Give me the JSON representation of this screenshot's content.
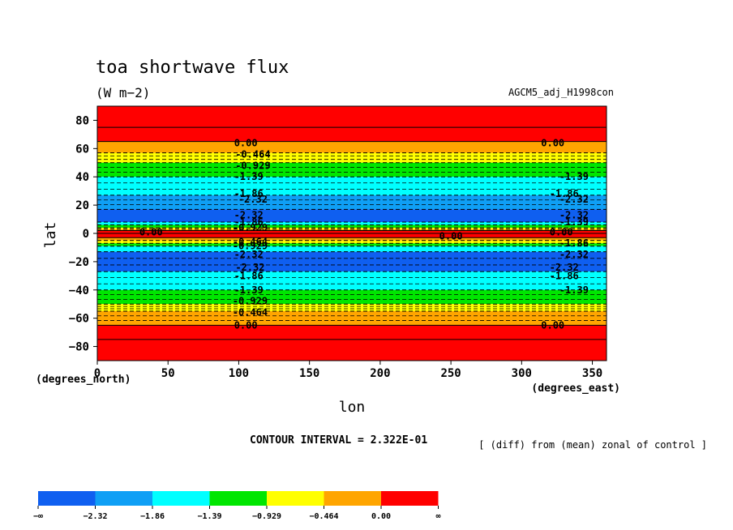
{
  "chart_data": {
    "type": "heatmap",
    "title": "toa shortwave flux",
    "units": "(W m−2)",
    "experiment": "AGCM5_adj_H1998con",
    "xlabel": "lon",
    "ylabel": "lat",
    "x_units": "(degrees_east)",
    "y_units": "(degrees_north)",
    "xlim": [
      0,
      360
    ],
    "ylim": [
      -90,
      90
    ],
    "x_ticks": [
      "0",
      "50",
      "100",
      "150",
      "200",
      "250",
      "300",
      "350"
    ],
    "x_tick_values": [
      0,
      50,
      100,
      150,
      200,
      250,
      300,
      350
    ],
    "y_ticks": [
      "80",
      "60",
      "40",
      "20",
      "0",
      "−20",
      "−40",
      "−60",
      "−80"
    ],
    "y_tick_values": [
      80,
      60,
      40,
      20,
      0,
      -20,
      -40,
      -60,
      -80
    ],
    "contour_interval_text": "CONTOUR INTERVAL = 2.322E-01",
    "note": "[ (diff) from (mean) zonal of control ]",
    "levels": [
      -2.32,
      -1.86,
      -1.39,
      -0.929,
      -0.464,
      0.0
    ],
    "colorbar_labels": [
      "−∞",
      "−2.32",
      "−1.86",
      "−1.39",
      "−0.929",
      "−0.464",
      "0.00",
      "∞"
    ],
    "colorbar_colors": [
      "#0f5ff0",
      "#0f9ff5",
      "#00ffff",
      "#00e600",
      "#ffff00",
      "#ffa500",
      "#ff0000"
    ],
    "zonal_bands": [
      {
        "lat_from": 90,
        "lat_to": 65,
        "value": 0.0
      },
      {
        "lat_from": 65,
        "lat_to": 57,
        "value": -0.2
      },
      {
        "lat_from": 57,
        "lat_to": 50,
        "value": -0.7
      },
      {
        "lat_from": 50,
        "lat_to": 40,
        "value": -1.1
      },
      {
        "lat_from": 40,
        "lat_to": 27,
        "value": -1.6
      },
      {
        "lat_from": 27,
        "lat_to": 17,
        "value": -2.1
      },
      {
        "lat_from": 17,
        "lat_to": 8,
        "value": -2.5
      },
      {
        "lat_from": 8,
        "lat_to": 6,
        "value": -1.7
      },
      {
        "lat_from": 6,
        "lat_to": 4,
        "value": -1.1
      },
      {
        "lat_from": 4,
        "lat_to": 3,
        "value": -0.7
      },
      {
        "lat_from": 3,
        "lat_to": 2,
        "value": -0.3
      },
      {
        "lat_from": 2,
        "lat_to": -3,
        "value": 0.0
      },
      {
        "lat_from": -3,
        "lat_to": -5,
        "value": -0.3
      },
      {
        "lat_from": -5,
        "lat_to": -7,
        "value": -0.7
      },
      {
        "lat_from": -7,
        "lat_to": -9,
        "value": -1.2
      },
      {
        "lat_from": -9,
        "lat_to": -13,
        "value": -1.7
      },
      {
        "lat_from": -13,
        "lat_to": -27,
        "value": -2.5
      },
      {
        "lat_from": -27,
        "lat_to": -40,
        "value": -1.6
      },
      {
        "lat_from": -40,
        "lat_to": -50,
        "value": -1.1
      },
      {
        "lat_from": -50,
        "lat_to": -55,
        "value": -0.7
      },
      {
        "lat_from": -55,
        "lat_to": -65,
        "value": -0.2
      },
      {
        "lat_from": -65,
        "lat_to": -90,
        "value": 0.0
      }
    ],
    "contour_labels": [
      {
        "text": "0.00",
        "lon": 105,
        "lat": 64
      },
      {
        "text": "0.00",
        "lon": 322,
        "lat": 64
      },
      {
        "text": "-0.464",
        "lon": 110,
        "lat": 56
      },
      {
        "text": "-0.929",
        "lon": 110,
        "lat": 48
      },
      {
        "text": "-1.39",
        "lon": 107,
        "lat": 40
      },
      {
        "text": "-1.39",
        "lon": 337,
        "lat": 40
      },
      {
        "text": "-1.86",
        "lon": 107,
        "lat": 28
      },
      {
        "text": "-1.86",
        "lon": 330,
        "lat": 28
      },
      {
        "text": "-2.32",
        "lon": 110,
        "lat": 24
      },
      {
        "text": "-2.32",
        "lon": 337,
        "lat": 24
      },
      {
        "text": "-2.32",
        "lon": 107,
        "lat": 13
      },
      {
        "text": "-2.32",
        "lon": 337,
        "lat": 13
      },
      {
        "text": "-1.86",
        "lon": 107,
        "lat": 8
      },
      {
        "text": "-1.39",
        "lon": 337,
        "lat": 8
      },
      {
        "text": "-0.929",
        "lon": 108,
        "lat": 4
      },
      {
        "text": "0.00",
        "lon": 38,
        "lat": 1
      },
      {
        "text": "0.00",
        "lon": 250,
        "lat": -2
      },
      {
        "text": "0.00",
        "lon": 328,
        "lat": 1
      },
      {
        "text": "-0.464",
        "lon": 108,
        "lat": -6
      },
      {
        "text": "-0.929",
        "lon": 108,
        "lat": -9
      },
      {
        "text": "-1.86",
        "lon": 337,
        "lat": -7
      },
      {
        "text": "-2.32",
        "lon": 107,
        "lat": -15
      },
      {
        "text": "-2.32",
        "lon": 337,
        "lat": -15
      },
      {
        "text": "-2.32",
        "lon": 108,
        "lat": -24
      },
      {
        "text": "-2.32",
        "lon": 330,
        "lat": -24
      },
      {
        "text": "-1.86",
        "lon": 107,
        "lat": -30
      },
      {
        "text": "-1.86",
        "lon": 330,
        "lat": -30
      },
      {
        "text": "-1.39",
        "lon": 107,
        "lat": -40
      },
      {
        "text": "-1.39",
        "lon": 337,
        "lat": -40
      },
      {
        "text": "-0.929",
        "lon": 108,
        "lat": -48
      },
      {
        "text": "-0.464",
        "lon": 108,
        "lat": -56
      },
      {
        "text": "0.00",
        "lon": 105,
        "lat": -65
      },
      {
        "text": "0.00",
        "lon": 322,
        "lat": -65
      }
    ]
  }
}
